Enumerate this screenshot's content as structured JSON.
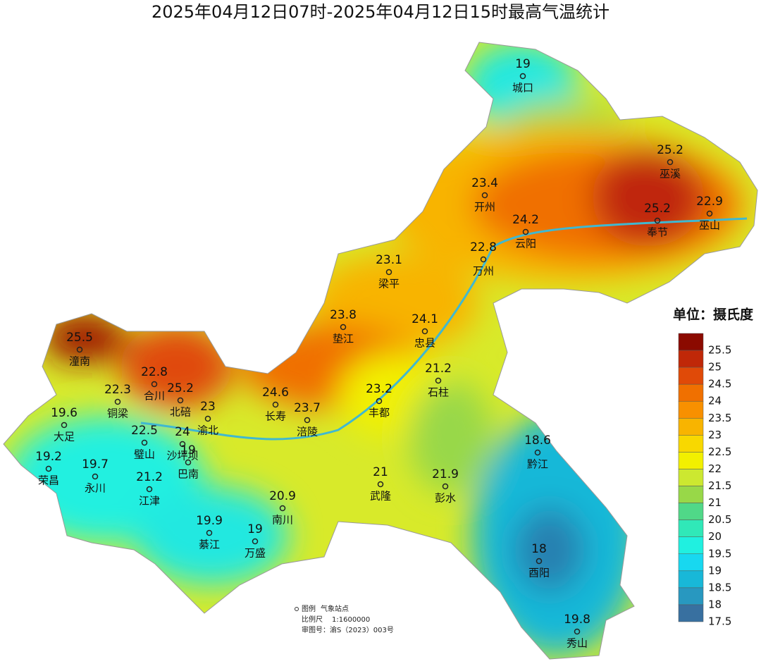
{
  "title": "2025年04月12日07时-2025年04月12日15时最高气温统计",
  "stations": [
    {
      "name": "城口",
      "value": "19"
    },
    {
      "name": "巫溪",
      "value": "25.2"
    },
    {
      "name": "开州",
      "value": "23.4"
    },
    {
      "name": "巫山",
      "value": "22.9"
    },
    {
      "name": "奉节",
      "value": "25.2"
    },
    {
      "name": "云阳",
      "value": "24.2"
    },
    {
      "name": "万州",
      "value": "22.8"
    },
    {
      "name": "梁平",
      "value": "23.1"
    },
    {
      "name": "垫江",
      "value": "23.8"
    },
    {
      "name": "忠县",
      "value": "24.1"
    },
    {
      "name": "潼南",
      "value": "25.5"
    },
    {
      "name": "合川",
      "value": "22.8"
    },
    {
      "name": "石柱",
      "value": "21.2"
    },
    {
      "name": "铜梁",
      "value": "22.3"
    },
    {
      "name": "北碚",
      "value": "25.2"
    },
    {
      "name": "渝北",
      "value": "23"
    },
    {
      "name": "长寿",
      "value": "24.6"
    },
    {
      "name": "涪陵",
      "value": "23.7"
    },
    {
      "name": "丰都",
      "value": "23.2"
    },
    {
      "name": "大足",
      "value": "19.6"
    },
    {
      "name": "璧山",
      "value": "22.5"
    },
    {
      "name": "沙坪坝",
      "value": "24"
    },
    {
      "name": "黔江",
      "value": "18.6"
    },
    {
      "name": "荣昌",
      "value": "19.2"
    },
    {
      "name": "永川",
      "value": "19.7"
    },
    {
      "name": "巴南",
      "value": "19"
    },
    {
      "name": "江津",
      "value": "21.2"
    },
    {
      "name": "武隆",
      "value": "21"
    },
    {
      "name": "彭水",
      "value": "21.9"
    },
    {
      "name": "南川",
      "value": "20.9"
    },
    {
      "name": "綦江",
      "value": "19.9"
    },
    {
      "name": "万盛",
      "value": "19"
    },
    {
      "name": "酉阳",
      "value": "18"
    },
    {
      "name": "秀山",
      "value": "19.8"
    }
  ],
  "legend": {
    "title": "单位：摄氏度",
    "items": [
      {
        "label": "25.5",
        "color": "#8b0a00"
      },
      {
        "label": "25",
        "color": "#c02808"
      },
      {
        "label": "24.5",
        "color": "#e04a08"
      },
      {
        "label": "24",
        "color": "#f07000"
      },
      {
        "label": "23.5",
        "color": "#f89000"
      },
      {
        "label": "23",
        "color": "#f8b400"
      },
      {
        "label": "22.5",
        "color": "#f8d800"
      },
      {
        "label": "22",
        "color": "#f2f000"
      },
      {
        "label": "21.5",
        "color": "#cce830"
      },
      {
        "label": "21",
        "color": "#98d848"
      },
      {
        "label": "20.5",
        "color": "#50d888"
      },
      {
        "label": "20",
        "color": "#30e8b8"
      },
      {
        "label": "19.5",
        "color": "#20f0e0"
      },
      {
        "label": "19",
        "color": "#18d8f0"
      },
      {
        "label": "18.5",
        "color": "#18b8d8"
      },
      {
        "label": "18",
        "color": "#2898c0"
      },
      {
        "label": "17.5",
        "color": "#3870a0"
      }
    ]
  },
  "notes": {
    "legend_label": "图例",
    "legend_item": "气象站点",
    "scale_label": "比例尺",
    "scale": "1:1600000",
    "approval": "审图号：渝S（2023）003号"
  }
}
